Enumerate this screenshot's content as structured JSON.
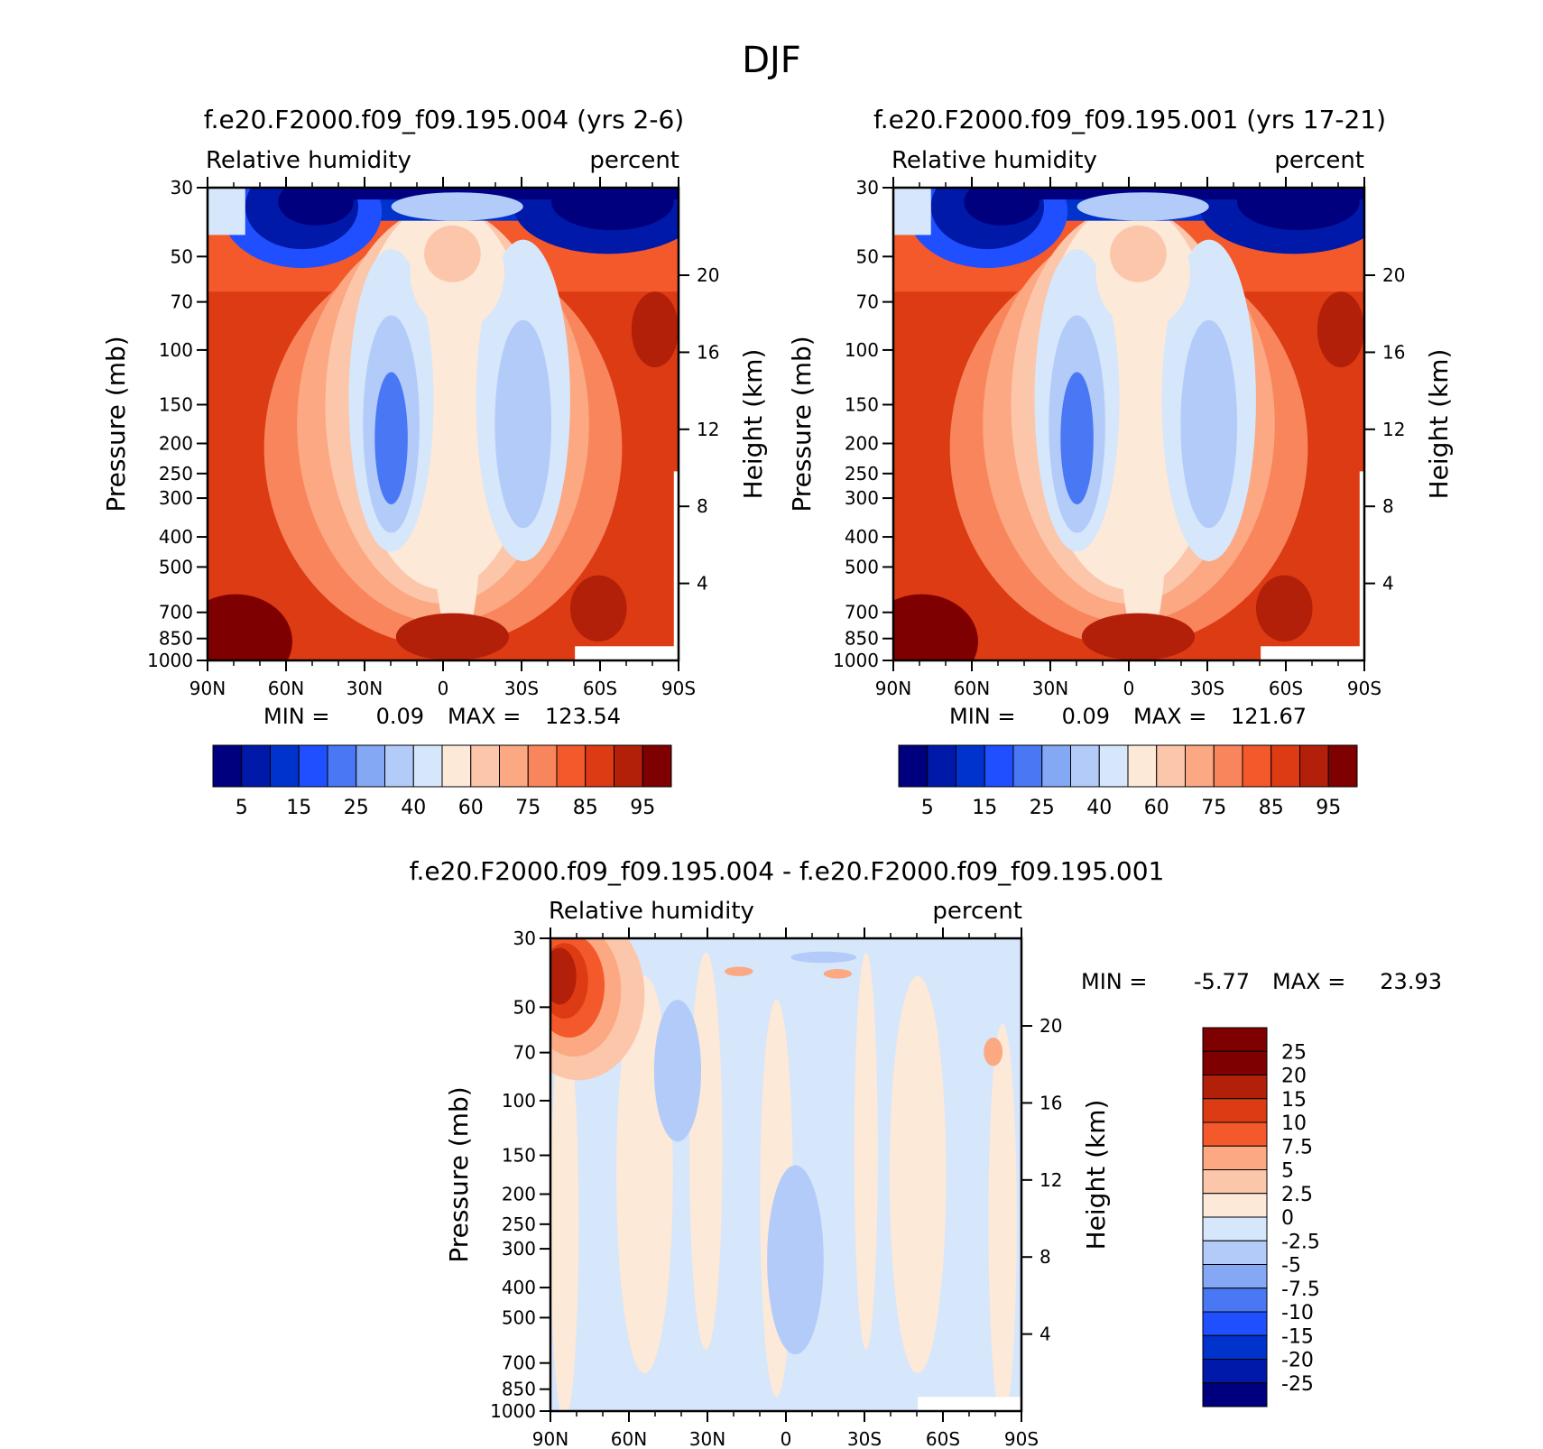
{
  "figure_title": "DJF",
  "colors": {
    "rh_scale": [
      "#00007f",
      "#0019a8",
      "#0033cc",
      "#1f4fff",
      "#4a78f5",
      "#85a8f5",
      "#b3cbf9",
      "#d6e6fb",
      "#fde9d8",
      "#fcc6ab",
      "#fba883",
      "#f8855b",
      "#f4592b",
      "#dc3b14",
      "#b32009",
      "#7f0000"
    ],
    "diff_scale": [
      "#7f0000",
      "#b32009",
      "#dc3b14",
      "#f4592b",
      "#fba883",
      "#fcc6ab",
      "#fde9d8",
      "#d6e6fb",
      "#b3cbf9",
      "#85a8f5",
      "#4a78f5",
      "#1f4fff",
      "#0033cc",
      "#0019a8",
      "#00007f"
    ]
  },
  "panels": [
    {
      "title": "f.e20.F2000.f09_f09.195.004 (yrs 2-6)",
      "variable": "Relative humidity",
      "units": "percent",
      "min_label": "MIN =",
      "min_value": "0.09",
      "max_label": "MAX =",
      "max_value": "123.54",
      "colorbar_labels": [
        "5",
        "15",
        "25",
        "40",
        "60",
        "75",
        "85",
        "95"
      ]
    },
    {
      "title": "f.e20.F2000.f09_f09.195.001 (yrs 17-21)",
      "variable": "Relative humidity",
      "units": "percent",
      "min_label": "MIN =",
      "min_value": "0.09",
      "max_label": "MAX =",
      "max_value": "121.67",
      "colorbar_labels": [
        "5",
        "15",
        "25",
        "40",
        "60",
        "75",
        "85",
        "95"
      ]
    },
    {
      "title": "f.e20.F2000.f09_f09.195.004 - f.e20.F2000.f09_f09.195.001",
      "variable": "Relative humidity",
      "units": "percent",
      "min_label": "MIN =",
      "min_value": "-5.77",
      "max_label": "MAX =",
      "max_value": "23.93",
      "colorbar_labels": [
        "25",
        "20",
        "15",
        "10",
        "7.5",
        "5",
        "2.5",
        "0",
        "-2.5",
        "-5",
        "-7.5",
        "-10",
        "-15",
        "-20",
        "-25"
      ]
    }
  ],
  "chart_data": {
    "type": "heatmap",
    "title": "DJF",
    "xlabel": "",
    "ylabel": "Pressure (mb)",
    "y2label": "Height (km)",
    "x_tick_labels": [
      "90N",
      "60N",
      "30N",
      "0",
      "30S",
      "60S",
      "90S"
    ],
    "x_tick_values": [
      90,
      60,
      30,
      0,
      -30,
      -60,
      -90
    ],
    "y_tick_labels": [
      "30",
      "50",
      "70",
      "100",
      "150",
      "200",
      "250",
      "300",
      "400",
      "500",
      "700",
      "850",
      "1000"
    ],
    "y_tick_values": [
      30,
      50,
      70,
      100,
      150,
      200,
      250,
      300,
      400,
      500,
      700,
      850,
      1000
    ],
    "y2_tick_labels": [
      "20",
      "16",
      "12",
      "8",
      "4"
    ],
    "y2_tick_values": [
      20,
      16,
      12,
      8,
      4
    ],
    "xlim": [
      90,
      -90
    ],
    "ylim": [
      1000,
      30
    ],
    "rh_levels": [
      5,
      10,
      15,
      20,
      25,
      30,
      40,
      50,
      60,
      65,
      75,
      80,
      85,
      90,
      95
    ],
    "diff_levels": [
      25,
      20,
      15,
      10,
      7.5,
      5,
      2.5,
      0,
      -2.5,
      -5,
      -7.5,
      -10,
      -15,
      -20,
      -25
    ]
  }
}
